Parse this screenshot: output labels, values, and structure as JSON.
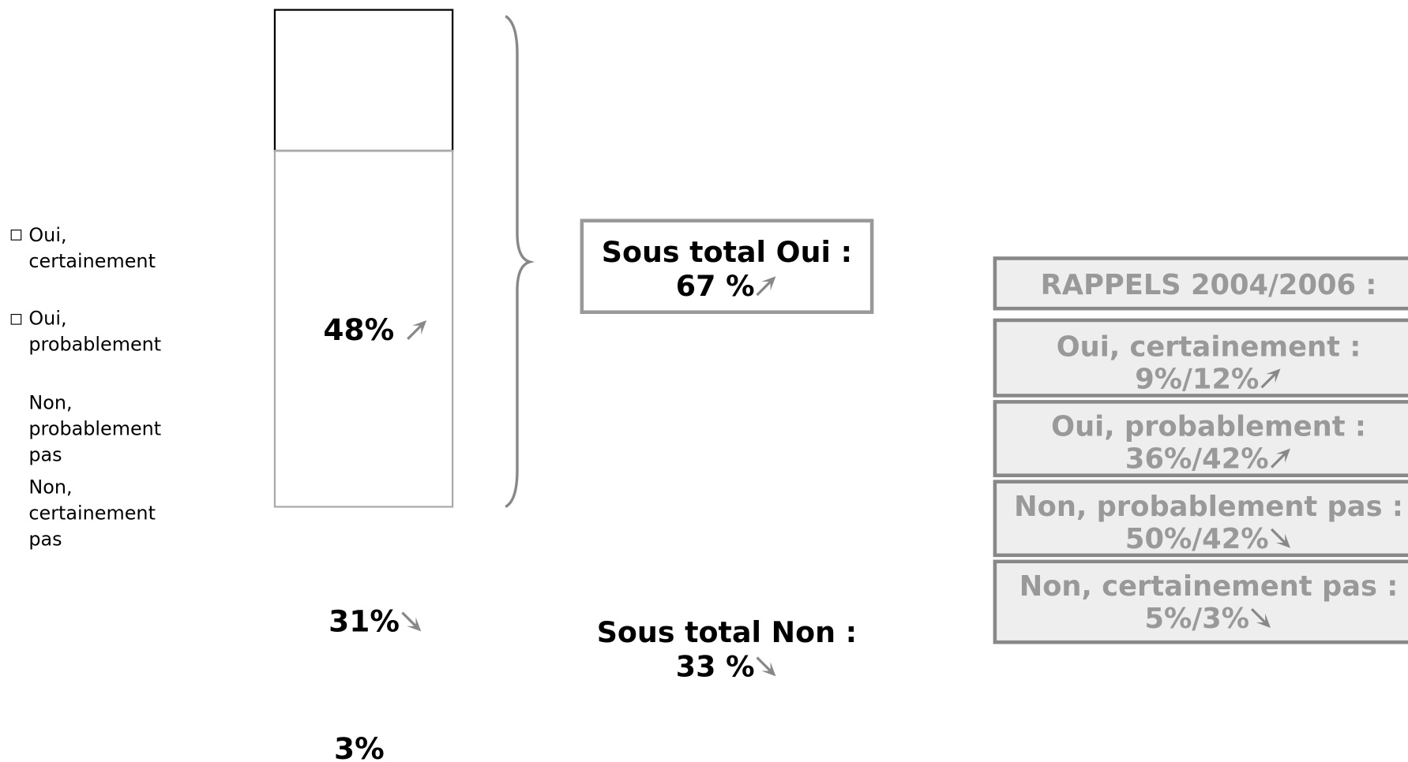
{
  "legend": [
    "Oui, certainement",
    "Oui, probablement",
    "Non, probablement pas",
    "Non, certainement pas"
  ],
  "bar_labels": [
    "48%",
    "31%",
    "3%"
  ],
  "subtotal_oui": {
    "label": "Sous total Oui :",
    "value": "67 %"
  },
  "subtotal_non": {
    "label": "Sous total Non :",
    "value": "33 %"
  },
  "rappels": {
    "title": "RAPPELS 2004/2006 :",
    "items": [
      {
        "label": "Oui, certainement :",
        "value": "9%/12%"
      },
      {
        "label": "Oui, probablement :",
        "value": "36%/42%"
      },
      {
        "label": "Non, probablement pas :",
        "value": "50%/42%"
      },
      {
        "label": "Non, certainement pas :",
        "value": "5%/3%"
      }
    ]
  }
}
